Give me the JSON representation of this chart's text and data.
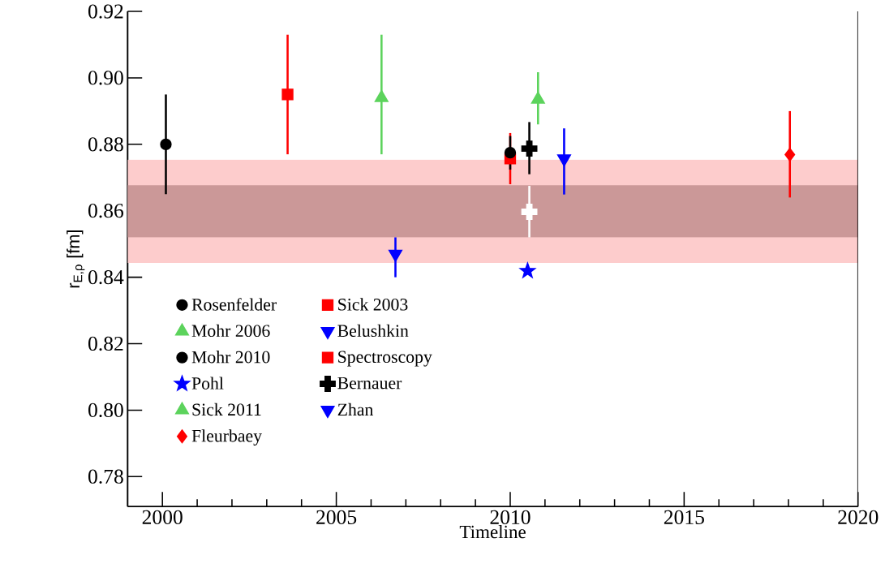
{
  "chart_data": {
    "type": "scatter",
    "xlabel": "Timeline",
    "ylabel": "r$_{E,ρ}$  [fm]",
    "xlim": [
      1999,
      2020
    ],
    "ylim": [
      0.771,
      0.92
    ],
    "xticks": [
      2000,
      2005,
      2010,
      2015,
      2020
    ],
    "yticks": [
      0.78,
      {
        "value": 0.8,
        "label": "0.80"
      },
      0.82,
      0.84,
      0.86,
      0.88,
      {
        "value": 0.9,
        "label": "0.90"
      },
      0.92
    ],
    "legend": "bottom left",
    "bands": [
      {
        "axis": "y",
        "from": 0.8443,
        "to": 0.8754,
        "color": "#fdcccc"
      },
      {
        "axis": "y",
        "from": 0.852,
        "to": 0.8677,
        "color": "#cb9898"
      }
    ],
    "series": [
      {
        "name": "Rosenfelder",
        "color": "#000000",
        "marker": "circle",
        "x": [
          2000.1
        ],
        "values": [
          0.88
        ],
        "errors": [
          [
            0.865,
            0.895
          ]
        ]
      },
      {
        "name": "Sick 2003",
        "color": "#ff0000",
        "marker": "square",
        "x": [
          2003.6
        ],
        "values": [
          0.895
        ],
        "errors": [
          [
            0.877,
            0.913
          ]
        ]
      },
      {
        "name": "Mohr 2006",
        "color": "#5cd35c",
        "marker": "triangle",
        "x": [
          2006.3
        ],
        "values": [
          0.894
        ],
        "errors": [
          [
            0.877,
            0.913
          ]
        ]
      },
      {
        "name": "Belushkin",
        "color": "#0000ff",
        "marker": "triangle-down",
        "x": [
          2006.7
        ],
        "values": [
          0.847
        ],
        "errors": [
          [
            0.84,
            0.852
          ]
        ]
      },
      {
        "name": "Mohr 2010",
        "color": "#000000",
        "marker": "circle",
        "x": [
          2010.0
        ],
        "values": [
          0.8775
        ],
        "errors": [
          [
            0.8724,
            0.8825
          ]
        ]
      },
      {
        "name": "Spectroscopy",
        "color": "#ff0000",
        "marker": "square",
        "x": [
          2010.0
        ],
        "values": [
          0.8757
        ],
        "errors": [
          [
            0.868,
            0.8834
          ]
        ]
      },
      {
        "name": "Pohl",
        "color": "#0000ff",
        "marker": "star",
        "x": [
          2010.5
        ],
        "values": [
          0.8419
        ]
      },
      {
        "name": "Bernauer",
        "color": "#000000",
        "marker": "cross",
        "x": [
          2010.55
        ],
        "values": [
          0.8787
        ],
        "errors": [
          [
            0.871,
            0.8867
          ]
        ]
      },
      {
        "name": "Sick 2011",
        "color": "#5cd35c",
        "marker": "triangle",
        "x": [
          2010.8
        ],
        "values": [
          0.8935
        ],
        "errors": [
          [
            0.886,
            0.9017
          ]
        ]
      },
      {
        "name": "Zhan",
        "color": "#0000ff",
        "marker": "triangle-down",
        "x": [
          2011.55
        ],
        "values": [
          0.8757
        ],
        "errors": [
          [
            0.8649,
            0.8848
          ]
        ]
      },
      {
        "name": "Fleurbaey",
        "color": "#ff0000",
        "marker": "diamond",
        "x": [
          2018.04
        ],
        "values": [
          0.8769
        ],
        "errors": [
          [
            0.864,
            0.89
          ]
        ]
      },
      {
        "color": "#ffffff",
        "marker": "cross",
        "x": [
          2010.55
        ],
        "values": [
          0.8597
        ],
        "errors": [
          [
            0.852,
            0.8675
          ]
        ]
      }
    ]
  }
}
